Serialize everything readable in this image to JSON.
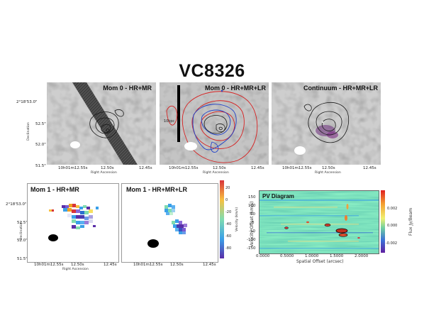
{
  "title": "VC8326",
  "panels": {
    "mom0_hrmr": {
      "label": "Mom 0 - HR+MR"
    },
    "mom0_all": {
      "label": "Mom 0 - HR+MR+LR",
      "scale_label": "10kpc"
    },
    "continuum": {
      "label": "Continuum - HR+MR+LR"
    },
    "mom1_hrmr": {
      "label": "Mom 1 - HR+MR"
    },
    "mom1_all": {
      "label": "Mom 1 - HR+MR+LR"
    },
    "pv": {
      "label": "PV Diagram"
    }
  },
  "axes": {
    "ra_label": "Right Ascension",
    "dec_label": "Declination",
    "dec_ticks": [
      "2°18'53.0\"",
      "52.5\"",
      "52.0\"",
      "51.5\""
    ],
    "ra_ticks": [
      "10h01m12.55s",
      "12.50s",
      "12.45s"
    ],
    "ra_ticks_short": [
      "10h01m12.55s",
      "12.50s",
      "12.45s"
    ]
  },
  "mom1_colorbar": {
    "label": "Velocity (km/s)",
    "ticks": [
      "20",
      "0",
      "-20",
      "-40",
      "-60",
      "-80"
    ]
  },
  "pv_axes": {
    "xlabel": "Spatial Offset (arcsec)",
    "ylabel": "Velocity Offset (km/s)",
    "xticks": [
      "0.0000",
      "0.5000",
      "1.0000",
      "1.5000",
      "2.0000"
    ],
    "yticks": [
      "150",
      "100",
      "50",
      "0",
      "-50",
      "-100",
      "-150"
    ],
    "cbar_label": "Flux Jy/Beam",
    "cbar_ticks": [
      "0.002",
      "0.000",
      "-0.002"
    ]
  },
  "colors": {
    "contour_black": "#1a1a1a",
    "contour_red": "#d62020",
    "contour_blue": "#2040c8",
    "noise_mid": "#a8a8a8"
  }
}
